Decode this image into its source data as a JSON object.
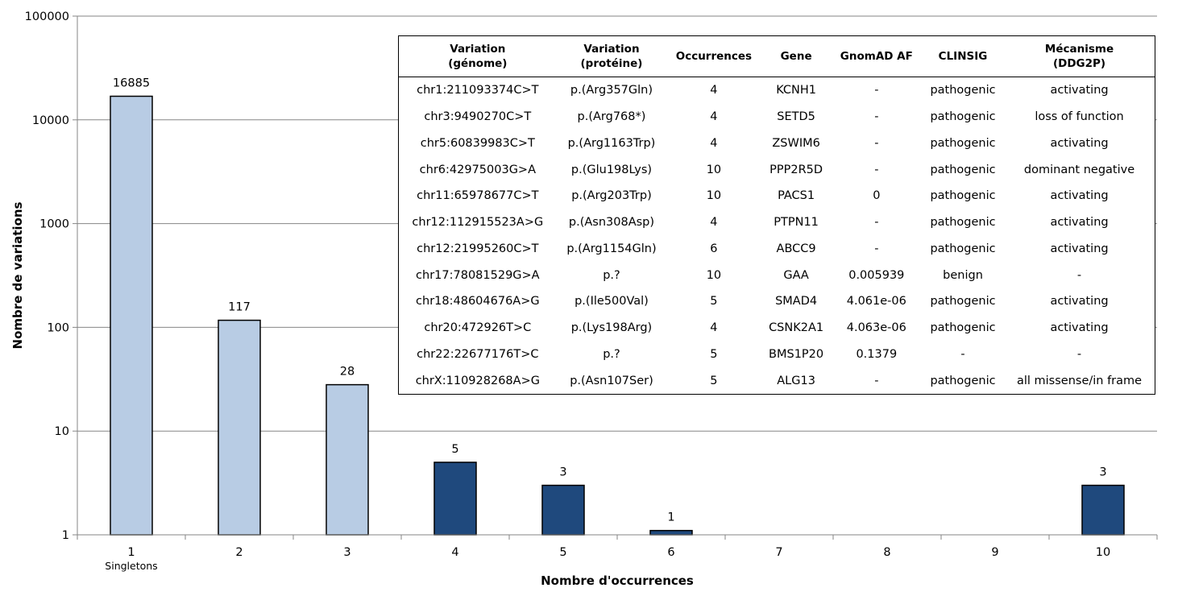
{
  "chart_data": {
    "type": "bar",
    "scale": "log",
    "ylim": [
      1,
      100000
    ],
    "yticks": [
      "1",
      "10",
      "100",
      "1000",
      "10000",
      "100000"
    ],
    "ylabel": "Nombre de variations",
    "xlabel": "Nombre d'occurrences",
    "categories": [
      "1",
      "2",
      "3",
      "4",
      "5",
      "6",
      "7",
      "8",
      "9",
      "10"
    ],
    "category_sublabels": [
      "Singletons",
      "",
      "",
      "",
      "",
      "",
      "",
      "",
      "",
      ""
    ],
    "values": [
      16885,
      117,
      28,
      5,
      3,
      1.1,
      null,
      null,
      null,
      3
    ],
    "data_labels": [
      "16885",
      "117",
      "28",
      "5",
      "3",
      "1",
      "",
      "",
      "",
      "3"
    ],
    "bar_colors": [
      "#b8cce4",
      "#b8cce4",
      "#b8cce4",
      "#1f497d",
      "#1f497d",
      "#1f497d",
      "#1f497d",
      "#1f497d",
      "#1f497d",
      "#1f497d"
    ],
    "grid": true,
    "legend": "none"
  },
  "table": {
    "headers": [
      [
        "Variation",
        "(génome)"
      ],
      [
        "Variation",
        "(protéine)"
      ],
      [
        "Occurrences",
        ""
      ],
      [
        "Gene",
        ""
      ],
      [
        "GnomAD AF",
        ""
      ],
      [
        "CLINSIG",
        ""
      ],
      [
        "Mécanisme",
        "(DDG2P)"
      ]
    ],
    "rows": [
      [
        "chr1:211093374C>T",
        "p.(Arg357Gln)",
        "4",
        "KCNH1",
        "-",
        "pathogenic",
        "activating"
      ],
      [
        "chr3:9490270C>T",
        "p.(Arg768*)",
        "4",
        "SETD5",
        "-",
        "pathogenic",
        "loss of function"
      ],
      [
        "chr5:60839983C>T",
        "p.(Arg1163Trp)",
        "4",
        "ZSWIM6",
        "-",
        "pathogenic",
        "activating"
      ],
      [
        "chr6:42975003G>A",
        "p.(Glu198Lys)",
        "10",
        "PPP2R5D",
        "-",
        "pathogenic",
        "dominant negative"
      ],
      [
        "chr11:65978677C>T",
        "p.(Arg203Trp)",
        "10",
        "PACS1",
        "0",
        "pathogenic",
        "activating"
      ],
      [
        "chr12:112915523A>G",
        "p.(Asn308Asp)",
        "4",
        "PTPN11",
        "-",
        "pathogenic",
        "activating"
      ],
      [
        "chr12:21995260C>T",
        "p.(Arg1154Gln)",
        "6",
        "ABCC9",
        "-",
        "pathogenic",
        "activating"
      ],
      [
        "chr17:78081529G>A",
        "p.?",
        "10",
        "GAA",
        "0.005939",
        "benign",
        "-"
      ],
      [
        "chr18:48604676A>G",
        "p.(Ile500Val)",
        "5",
        "SMAD4",
        "4.061e-06",
        "pathogenic",
        "activating"
      ],
      [
        "chr20:472926T>C",
        "p.(Lys198Arg)",
        "4",
        "CSNK2A1",
        "4.063e-06",
        "pathogenic",
        "activating"
      ],
      [
        "chr22:22677176T>C",
        "p.?",
        "5",
        "BMS1P20",
        "0.1379",
        "-",
        "-"
      ],
      [
        "chrX:110928268A>G",
        "p.(Asn107Ser)",
        "5",
        "ALG13",
        "-",
        "pathogenic",
        "all missense/in frame"
      ]
    ]
  }
}
